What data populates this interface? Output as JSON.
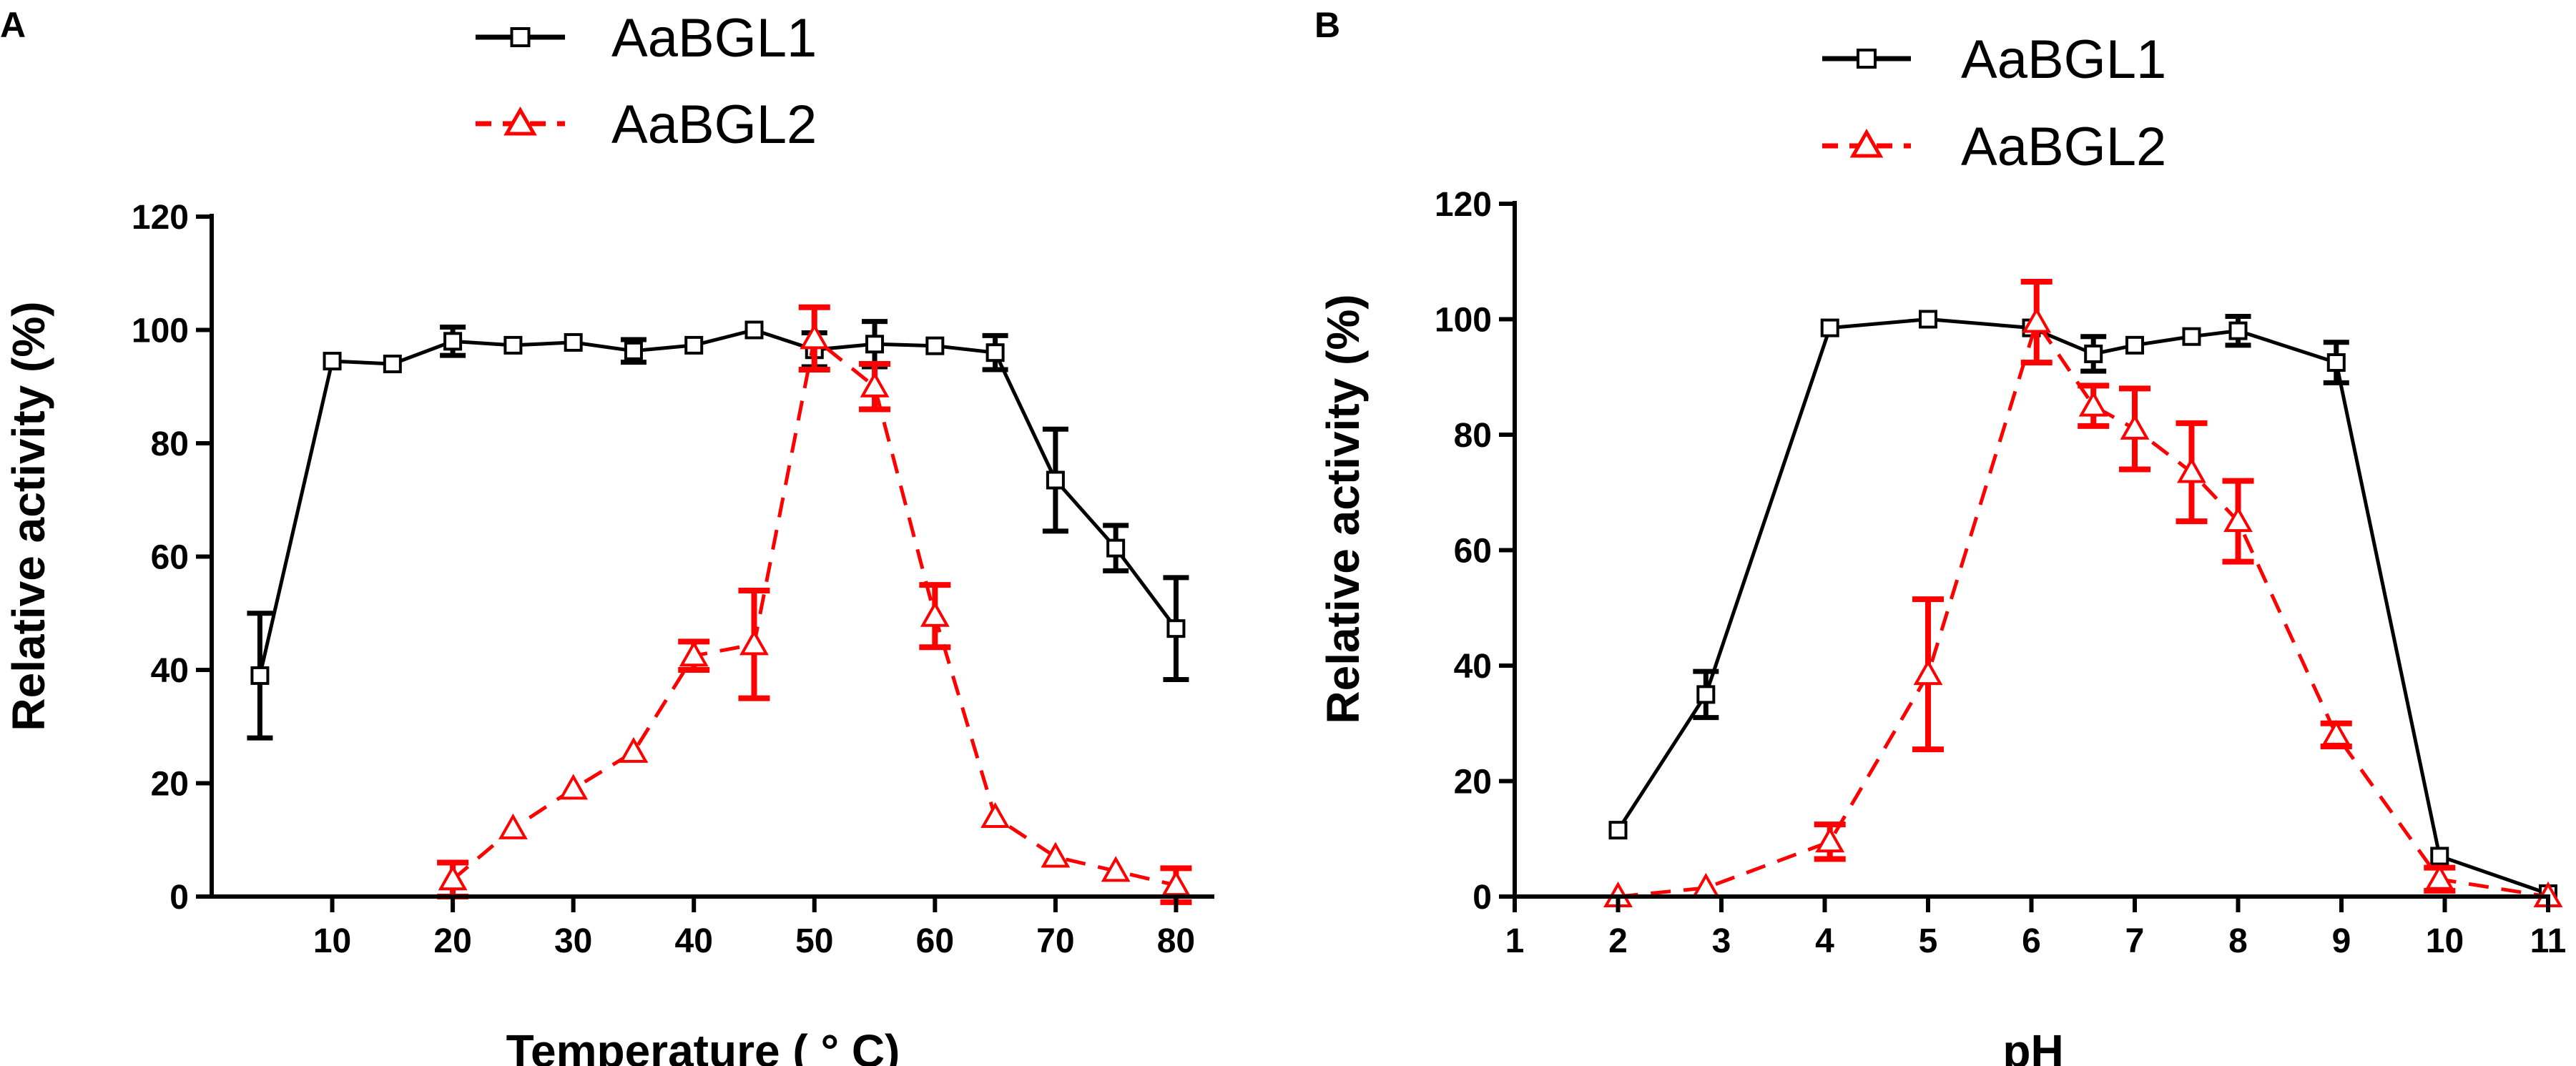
{
  "chart_data": [
    {
      "panel": "A",
      "type": "line",
      "xlabel": "Temperature ( ° C)",
      "ylabel": "Relative activity (%)",
      "xlim": [
        0,
        83
      ],
      "ylim": [
        0,
        120
      ],
      "xticks": [
        10,
        20,
        30,
        40,
        50,
        60,
        70,
        80
      ],
      "yticks": [
        0,
        20,
        40,
        60,
        80,
        100,
        120
      ],
      "legend_position": "top-center",
      "series": [
        {
          "name": "AaBGL1",
          "color": "#000000",
          "marker": "square",
          "dash": "solid",
          "points": [
            {
              "x": 4,
              "y": 39,
              "err": 11
            },
            {
              "x": 10,
              "y": 94.5,
              "err": 0
            },
            {
              "x": 15,
              "y": 94,
              "err": 0
            },
            {
              "x": 20,
              "y": 98,
              "err": 2.5
            },
            {
              "x": 25,
              "y": 97.3,
              "err": 0
            },
            {
              "x": 30,
              "y": 97.8,
              "err": 0
            },
            {
              "x": 35,
              "y": 96.3,
              "err": 2
            },
            {
              "x": 40,
              "y": 97.3,
              "err": 0
            },
            {
              "x": 45,
              "y": 100,
              "err": 0
            },
            {
              "x": 50,
              "y": 96.5,
              "err": 3
            },
            {
              "x": 55,
              "y": 97.5,
              "err": 4
            },
            {
              "x": 60,
              "y": 97.2,
              "err": 0
            },
            {
              "x": 65,
              "y": 96,
              "err": 3
            },
            {
              "x": 70,
              "y": 73.5,
              "err": 9
            },
            {
              "x": 75,
              "y": 61.5,
              "err": 4
            },
            {
              "x": 80,
              "y": 47.3,
              "err": 9
            }
          ]
        },
        {
          "name": "AaBGL2",
          "color": "#ff0000",
          "marker": "triangle",
          "dash": "dashed",
          "points": [
            {
              "x": 20,
              "y": 3,
              "err": 3
            },
            {
              "x": 25,
              "y": 12,
              "err": 0
            },
            {
              "x": 30,
              "y": 19,
              "err": 0
            },
            {
              "x": 35,
              "y": 25.5,
              "err": 0
            },
            {
              "x": 40,
              "y": 42.5,
              "err": 2.5
            },
            {
              "x": 45,
              "y": 44.5,
              "err": 9.5
            },
            {
              "x": 50,
              "y": 98.5,
              "err": 5.5
            },
            {
              "x": 55,
              "y": 90,
              "err": 4
            },
            {
              "x": 60,
              "y": 49.5,
              "err": 5.5
            },
            {
              "x": 65,
              "y": 14,
              "err": 0
            },
            {
              "x": 70,
              "y": 7,
              "err": 0
            },
            {
              "x": 75,
              "y": 4.5,
              "err": 0
            },
            {
              "x": 80,
              "y": 2,
              "err": 3
            }
          ]
        }
      ]
    },
    {
      "panel": "B",
      "type": "line",
      "xlabel": "pH",
      "ylabel": "Relative activity (%)",
      "xlim": [
        1,
        11
      ],
      "ylim": [
        0,
        120
      ],
      "xticks": [
        1,
        2,
        3,
        4,
        5,
        6,
        7,
        8,
        9,
        10,
        11
      ],
      "yticks": [
        0,
        20,
        40,
        60,
        80,
        100,
        120
      ],
      "legend_position": "top-center",
      "series": [
        {
          "name": "AaBGL1",
          "color": "#000000",
          "marker": "square",
          "dash": "solid",
          "points": [
            {
              "x": 2,
              "y": 11.5,
              "err": 0
            },
            {
              "x": 2.85,
              "y": 35,
              "err": 4
            },
            {
              "x": 4.05,
              "y": 98.5,
              "err": 0
            },
            {
              "x": 5,
              "y": 100,
              "err": 0
            },
            {
              "x": 6,
              "y": 98.5,
              "err": 0
            },
            {
              "x": 6.6,
              "y": 94,
              "err": 3
            },
            {
              "x": 7,
              "y": 95.5,
              "err": 0
            },
            {
              "x": 7.55,
              "y": 97,
              "err": 0
            },
            {
              "x": 8,
              "y": 98,
              "err": 2.5
            },
            {
              "x": 8.95,
              "y": 92.5,
              "err": 3.5
            },
            {
              "x": 9.95,
              "y": 7,
              "err": 0
            },
            {
              "x": 11,
              "y": 0.5,
              "err": 0
            }
          ]
        },
        {
          "name": "AaBGL2",
          "color": "#ff0000",
          "marker": "triangle",
          "dash": "dashed",
          "points": [
            {
              "x": 2,
              "y": 0,
              "err": 0
            },
            {
              "x": 2.85,
              "y": 1.5,
              "err": 0
            },
            {
              "x": 4.05,
              "y": 9.5,
              "err": 3
            },
            {
              "x": 5,
              "y": 38.5,
              "err": 13
            },
            {
              "x": 6.05,
              "y": 99.5,
              "err": 7
            },
            {
              "x": 6.6,
              "y": 85,
              "err": 3.5
            },
            {
              "x": 7,
              "y": 81,
              "err": 7
            },
            {
              "x": 7.55,
              "y": 73.5,
              "err": 8.5
            },
            {
              "x": 8,
              "y": 65,
              "err": 7
            },
            {
              "x": 8.95,
              "y": 28,
              "err": 2
            },
            {
              "x": 9.95,
              "y": 3,
              "err": 2
            },
            {
              "x": 11,
              "y": 0,
              "err": 0
            }
          ]
        }
      ]
    }
  ]
}
